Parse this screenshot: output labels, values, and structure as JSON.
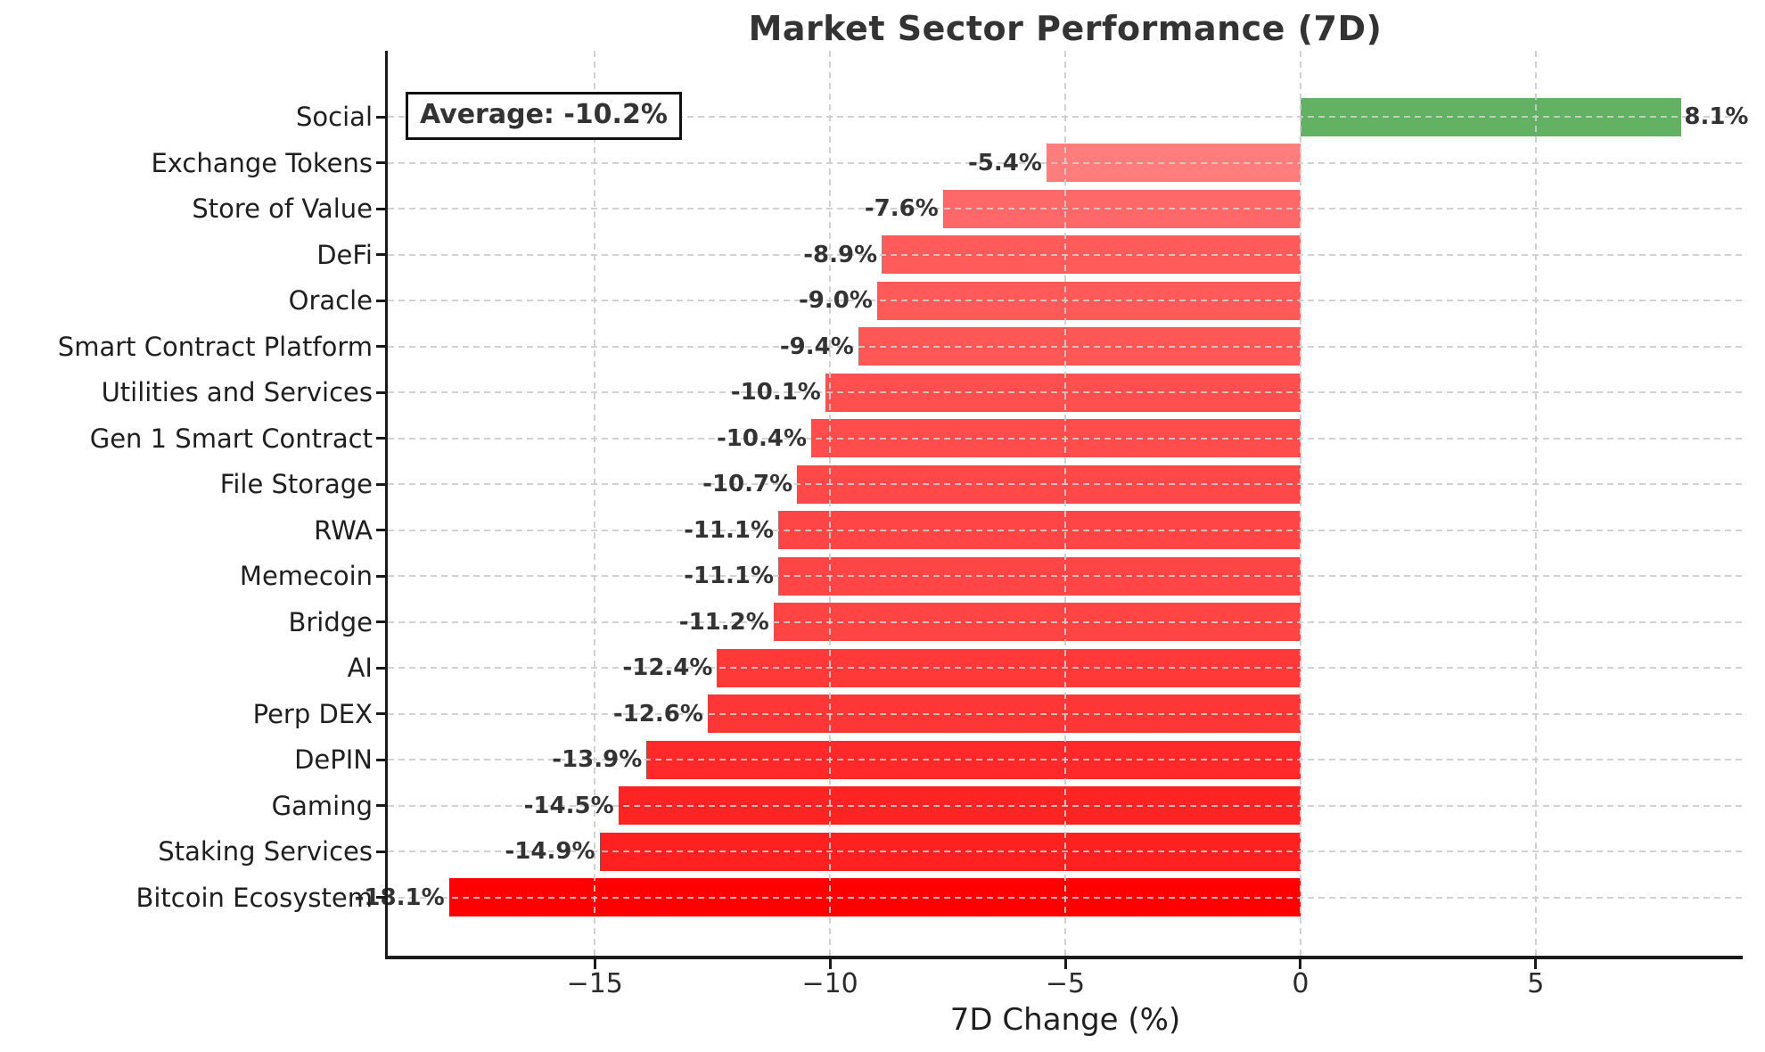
{
  "chart_data": {
    "type": "bar",
    "orientation": "horizontal",
    "title": "Market Sector Performance (7D)",
    "xlabel": "7D Change (%)",
    "ylabel": "",
    "annotation": "Average: -10.2%",
    "categories": [
      "Social",
      "Exchange Tokens",
      "Store of Value",
      "DeFi",
      "Oracle",
      "Smart Contract Platform",
      "Utilities and Services",
      "Gen 1 Smart Contract",
      "File Storage",
      "RWA",
      "Memecoin",
      "Bridge",
      "AI",
      "Perp DEX",
      "DePIN",
      "Gaming",
      "Staking Services",
      "Bitcoin Ecosystem"
    ],
    "values": [
      8.1,
      -5.4,
      -7.6,
      -8.9,
      -9.0,
      -9.4,
      -10.1,
      -10.4,
      -10.7,
      -11.1,
      -11.1,
      -11.2,
      -12.4,
      -12.6,
      -13.9,
      -14.5,
      -14.9,
      -18.1
    ],
    "value_labels": [
      "8.1%",
      "-5.4%",
      "-7.6%",
      "-8.9%",
      "-9.0%",
      "-9.4%",
      "-10.1%",
      "-10.4%",
      "-10.7%",
      "-11.1%",
      "-11.1%",
      "-11.2%",
      "-12.4%",
      "-12.6%",
      "-13.9%",
      "-14.5%",
      "-14.9%",
      "-18.1%"
    ],
    "x_ticks": {
      "values": [
        -15,
        -10,
        -5,
        0,
        5
      ],
      "labels": [
        "−15",
        "−10",
        "−5",
        "0",
        "5"
      ]
    },
    "xlim": [
      -19.4,
      9.4
    ],
    "grid": {
      "style": "dashed",
      "on": true,
      "color": "#cdcdcd",
      "zorder": "above-bars"
    },
    "legend": {
      "visible": false
    },
    "style": {
      "positive_base_color": "#008000",
      "negative_base_color": "#ff0000",
      "alpha_min": 0.3,
      "alpha_max": 1.0,
      "max_abs_value": 18.1,
      "title_color": "#333333",
      "value_label_color": "#333333",
      "tick_label_color": "#2b2b2b",
      "category_label_color": "#1f1f1f",
      "spine_color": "#1a1a1a",
      "annotation_border_color": "#111111",
      "background": "#ffffff"
    }
  }
}
